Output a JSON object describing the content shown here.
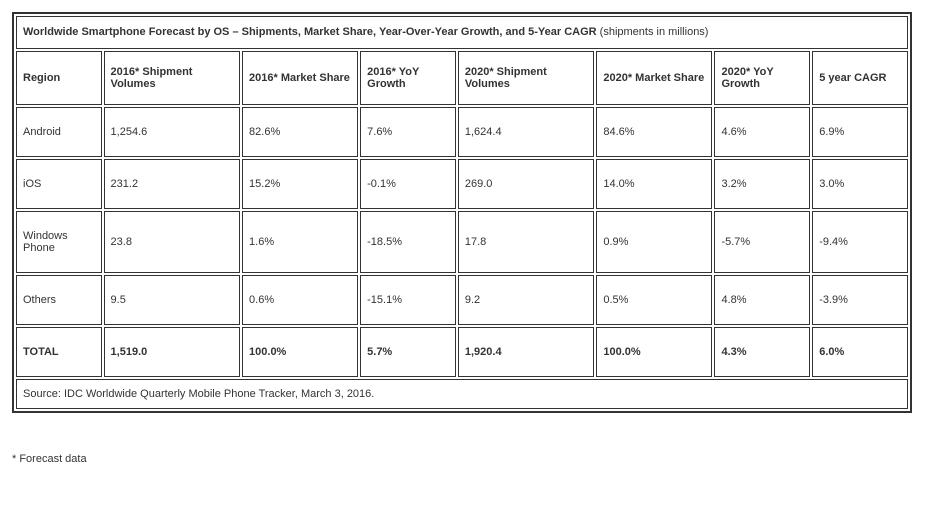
{
  "table": {
    "title_bold": "Worldwide Smartphone Forecast by OS – Shipments, Market Share, Year-Over-Year Growth, and 5-Year CAGR",
    "title_rest": " (shipments in millions)",
    "columns": [
      "Region",
      "2016* Shipment Volumes",
      "2016* Market Share",
      "2016* YoY Growth",
      "2020* Shipment Volumes",
      "2020* Market Share",
      "2020* YoY Growth",
      "5 year CAGR"
    ],
    "rows": [
      {
        "region": "Android",
        "c1": "1,254.6",
        "c2": "82.6%",
        "c3": "7.6%",
        "c4": "1,624.4",
        "c5": "84.6%",
        "c6": "4.6%",
        "c7": "6.9%"
      },
      {
        "region": "iOS",
        "c1": "231.2",
        "c2": "15.2%",
        "c3": "-0.1%",
        "c4": "269.0",
        "c5": "14.0%",
        "c6": "3.2%",
        "c7": "3.0%"
      },
      {
        "region": "Windows Phone",
        "c1": "23.8",
        "c2": "1.6%",
        "c3": "-18.5%",
        "c4": "17.8",
        "c5": "0.9%",
        "c6": "-5.7%",
        "c7": "-9.4%"
      },
      {
        "region": "Others",
        "c1": "9.5",
        "c2": "0.6%",
        "c3": "-15.1%",
        "c4": "9.2",
        "c5": "0.5%",
        "c6": "4.8%",
        "c7": "-3.9%"
      }
    ],
    "total": {
      "region": "TOTAL",
      "c1": "1,519.0",
      "c2": "100.0%",
      "c3": "5.7%",
      "c4": "1,920.4",
      "c5": "100.0%",
      "c6": "4.3%",
      "c7": "6.0%"
    },
    "source": "Source: IDC Worldwide Quarterly Mobile Phone Tracker, March 3, 2016."
  },
  "footnote": "* Forecast data"
}
